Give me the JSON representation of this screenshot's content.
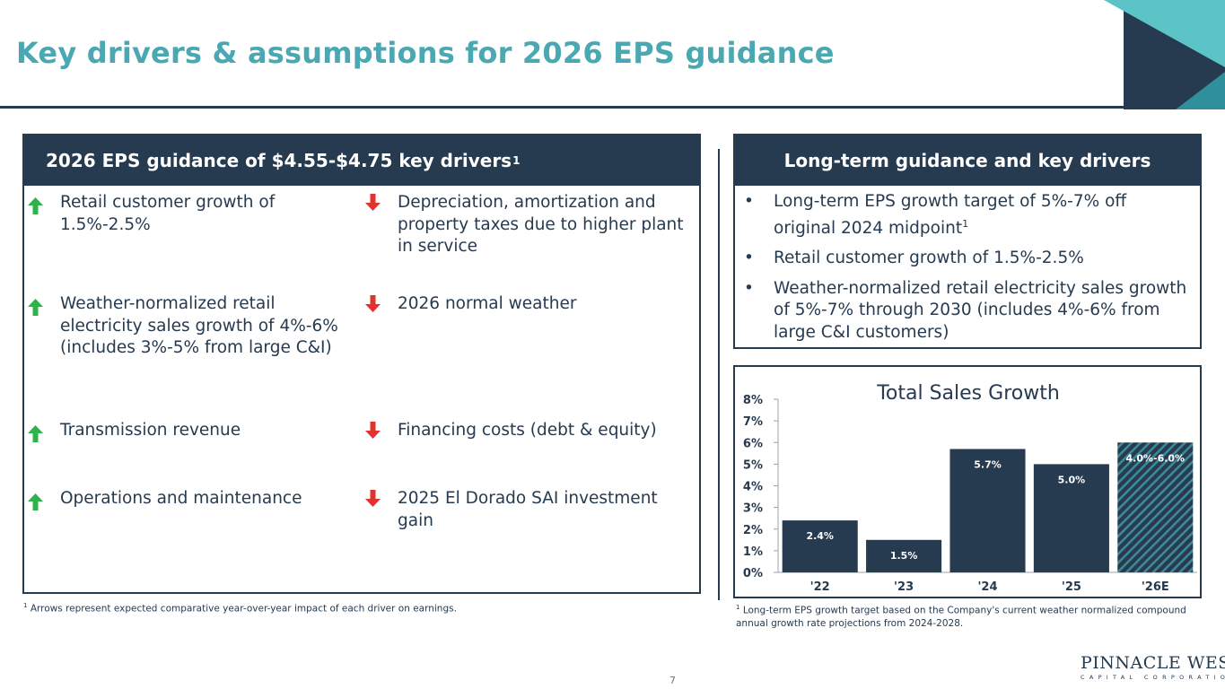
{
  "title": "Key drivers & assumptions for 2026 EPS guidance",
  "colors": {
    "navy": "#263a50",
    "teal": "#4aa8b2",
    "up": "#2db34a",
    "down": "#e3312d"
  },
  "left_panel": {
    "heading": "2026 EPS guidance of $4.55-$4.75 key drivers",
    "heading_sup": "1",
    "positive": [
      {
        "icon": "up-arrow-icon",
        "text": "Retail customer growth of 1.5%-2.5%"
      },
      {
        "icon": "up-arrow-icon",
        "text": "Weather-normalized retail electricity sales growth of 4%-6% (includes 3%-5% from large C&I)"
      },
      {
        "icon": "up-arrow-icon",
        "text": "Transmission revenue"
      },
      {
        "icon": "up-arrow-icon",
        "text": "Operations and maintenance"
      }
    ],
    "negative": [
      {
        "icon": "down-arrow-icon",
        "text": "Depreciation, amortization and property taxes due to higher plant in service"
      },
      {
        "icon": "down-arrow-icon",
        "text": "2026 normal weather"
      },
      {
        "icon": "down-arrow-icon",
        "text": "Financing costs (debt & equity)"
      },
      {
        "icon": "down-arrow-icon",
        "text": "2025 El Dorado SAI investment gain"
      }
    ],
    "footnote_sup": "1",
    "footnote": "Arrows represent expected comparative year-over-year impact of each driver on earnings."
  },
  "right_panel": {
    "heading": "Long-term guidance and key drivers",
    "bullet": "•",
    "items": [
      {
        "text": "Long-term EPS growth target of 5%-7% off original 2024 midpoint",
        "sup": "1"
      },
      {
        "text": "Retail customer growth of 1.5%-2.5%",
        "sup": ""
      },
      {
        "text": "Weather-normalized retail electricity sales growth of 5%-7% through 2030 (includes 4%-6% from large C&I customers)",
        "sup": ""
      }
    ],
    "footnote_sup": "1",
    "footnote": "Long-term EPS growth target based on the Company's current weather normalized compound annual growth rate projections from 2024-2028."
  },
  "chart_data": {
    "type": "bar",
    "title": "Total Sales Growth",
    "categories": [
      "'22",
      "'23",
      "'24",
      "'25",
      "'26E"
    ],
    "values": [
      2.4,
      1.5,
      5.7,
      5.0,
      6.0
    ],
    "labels": [
      "2.4%",
      "1.5%",
      "5.7%",
      "5.0%",
      "4.0%-6.0%"
    ],
    "range_low": [
      null,
      null,
      null,
      null,
      4.0
    ],
    "projected": [
      false,
      false,
      false,
      false,
      true
    ],
    "yticks": [
      "0%",
      "1%",
      "2%",
      "3%",
      "4%",
      "5%",
      "6%",
      "7%",
      "8%"
    ],
    "ylim": [
      0,
      8
    ],
    "xlabel": "",
    "ylabel": "",
    "grid": false
  },
  "page_number": "7",
  "logo": {
    "line1": "PINNACLE WEST",
    "line2": "CAPITAL CORPORATION"
  }
}
